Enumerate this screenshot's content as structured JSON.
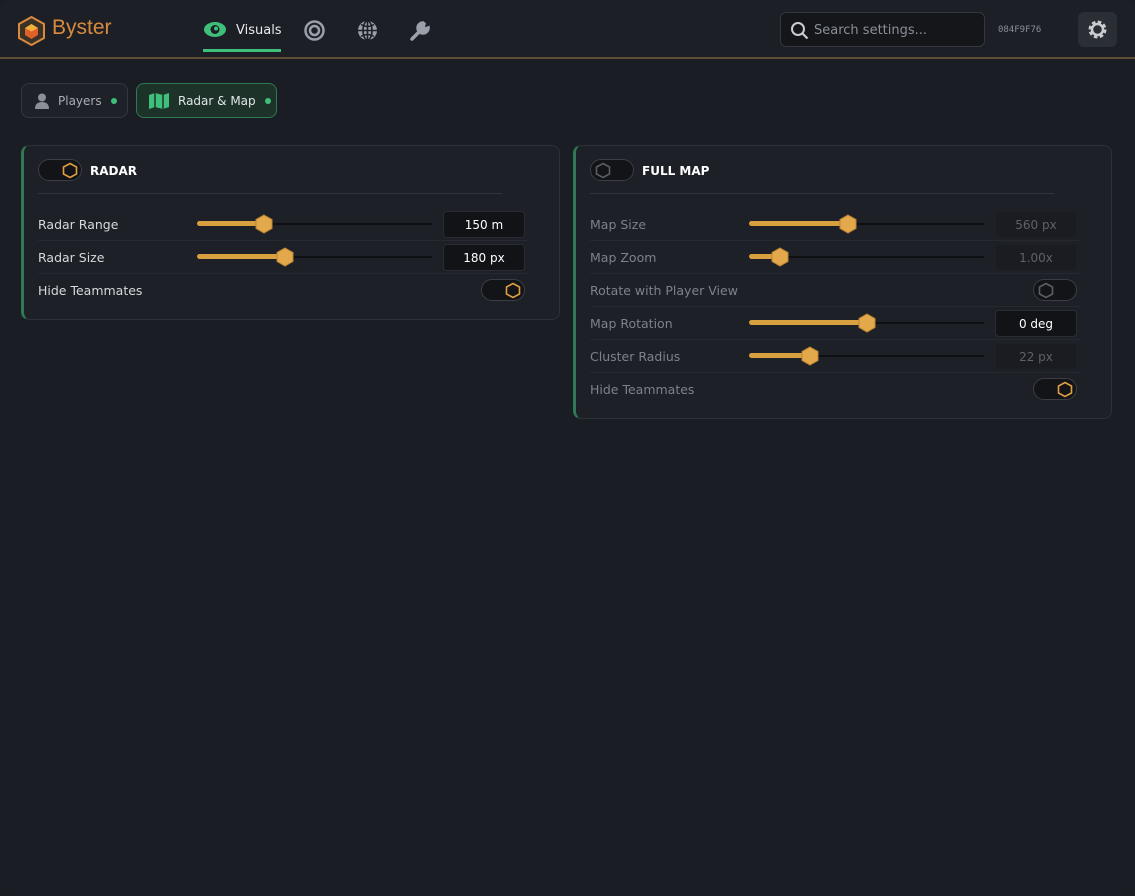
{
  "header": {
    "brand": "Byster",
    "nav": [
      {
        "label": "Visuals",
        "active": true
      }
    ],
    "search_placeholder": "Search settings...",
    "session_id": "084F9F76"
  },
  "tabs": [
    {
      "label": "Players",
      "active": false
    },
    {
      "label": "Radar & Map",
      "active": true
    }
  ],
  "panels": [
    {
      "title": "RADAR",
      "enabled": true,
      "rows": [
        {
          "label": "Radar Range",
          "value": "150 m"
        },
        {
          "label": "Radar Size",
          "value": "180 px"
        },
        {
          "label": "Hide Teammates",
          "toggle": true
        }
      ]
    },
    {
      "title": "FULL MAP",
      "enabled": false,
      "rows": [
        {
          "label": "Map Size",
          "value": "560 px"
        },
        {
          "label": "Map Zoom",
          "value": "1.00x"
        },
        {
          "label": "Rotate with Player View",
          "toggle": false
        },
        {
          "label": "Map Rotation",
          "value": "0 deg"
        },
        {
          "label": "Cluster Radius",
          "value": "22 px"
        },
        {
          "label": "Hide Teammates",
          "toggle": true
        }
      ]
    }
  ]
}
